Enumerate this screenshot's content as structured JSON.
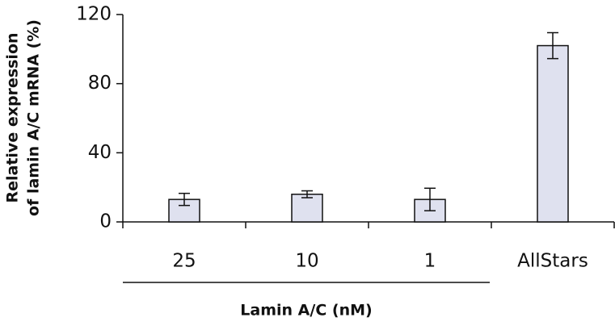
{
  "chart_data": {
    "type": "bar",
    "ylabel": [
      "Relative expression",
      "of lamin A/C mRNA (%)"
    ],
    "xlabel": "Lamin A/C (nM)",
    "categories": [
      "25",
      "10",
      "1",
      "AllStars"
    ],
    "values": [
      13,
      16,
      13,
      102
    ],
    "errors": [
      3.5,
      2,
      6.5,
      7.5
    ],
    "color": "#dfe1ef",
    "ylim": [
      0,
      120
    ],
    "yticks": [
      0,
      40,
      80,
      120
    ]
  }
}
